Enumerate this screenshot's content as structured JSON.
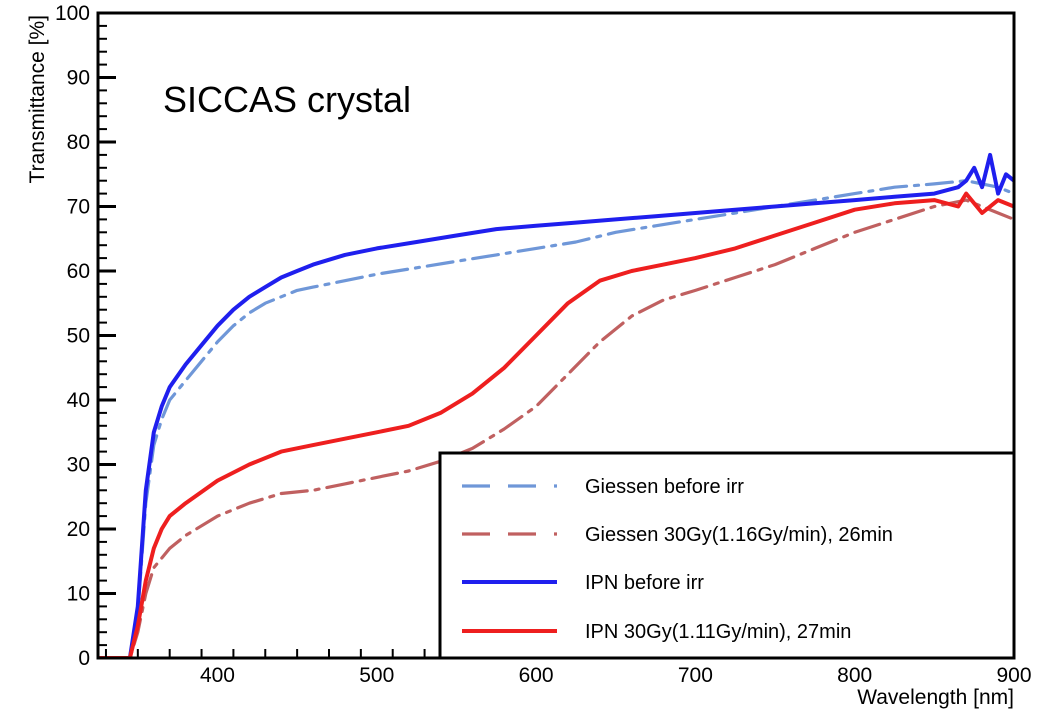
{
  "chart_data": {
    "type": "line",
    "title": "SICCAS crystal",
    "xlabel": "Wavelength [nm]",
    "ylabel": "Transmittance [%]",
    "xlim": [
      325,
      900
    ],
    "ylim": [
      0,
      100
    ],
    "xticks": [
      400,
      500,
      600,
      700,
      800,
      900
    ],
    "yticks": [
      0,
      10,
      20,
      30,
      40,
      50,
      60,
      70,
      80,
      90,
      100
    ],
    "grid": false,
    "legend_position": "bottom-right",
    "series": [
      {
        "name": "Giessen before irr",
        "color": "#6f97d8",
        "style": "dash-dot",
        "x": [
          325,
          345,
          350,
          355,
          360,
          365,
          370,
          380,
          390,
          400,
          410,
          420,
          430,
          440,
          450,
          460,
          480,
          500,
          525,
          550,
          575,
          600,
          625,
          650,
          675,
          700,
          725,
          750,
          775,
          800,
          825,
          850,
          870,
          890,
          900
        ],
        "y": [
          0,
          0,
          7,
          24,
          33,
          37,
          40,
          43,
          46,
          49,
          51.5,
          53.5,
          55,
          56,
          57,
          57.5,
          58.5,
          59.5,
          60.5,
          61.5,
          62.5,
          63.5,
          64.5,
          66,
          67,
          68,
          69,
          70,
          71,
          72,
          73,
          73.5,
          74,
          73,
          72
        ]
      },
      {
        "name": "Giessen 30Gy(1.16Gy/min), 26min",
        "color": "#c06060",
        "style": "dash-dot",
        "x": [
          325,
          345,
          350,
          355,
          360,
          370,
          380,
          400,
          420,
          440,
          460,
          480,
          500,
          520,
          540,
          560,
          580,
          600,
          620,
          640,
          660,
          680,
          700,
          725,
          750,
          775,
          800,
          825,
          850,
          870,
          890,
          900
        ],
        "y": [
          0,
          0,
          4,
          10,
          14,
          17,
          19,
          22,
          24,
          25.5,
          26,
          27,
          28,
          29,
          30.5,
          32.5,
          35.5,
          39,
          44,
          49,
          53,
          55.5,
          57,
          59,
          61,
          63.5,
          66,
          68,
          70,
          71,
          69,
          68
        ]
      },
      {
        "name": "IPN before irr",
        "color": "#1f1fee",
        "style": "solid",
        "x": [
          325,
          345,
          350,
          355,
          360,
          365,
          370,
          380,
          390,
          400,
          410,
          420,
          430,
          440,
          450,
          460,
          480,
          500,
          525,
          550,
          575,
          600,
          625,
          650,
          675,
          700,
          725,
          750,
          775,
          800,
          825,
          850,
          865,
          870,
          875,
          880,
          885,
          890,
          895,
          900
        ],
        "y": [
          0,
          0,
          8,
          26,
          35,
          39,
          42,
          45.5,
          48.5,
          51.5,
          54,
          56,
          57.5,
          59,
          60,
          61,
          62.5,
          63.5,
          64.5,
          65.5,
          66.5,
          67,
          67.5,
          68,
          68.5,
          69,
          69.5,
          70,
          70.5,
          71,
          71.5,
          72,
          73,
          74,
          76,
          73,
          78,
          72,
          75,
          74
        ]
      },
      {
        "name": "IPN 30Gy(1.11Gy/min), 27min",
        "color": "#ee1f1f",
        "style": "solid",
        "x": [
          325,
          345,
          350,
          355,
          360,
          365,
          370,
          380,
          400,
          420,
          440,
          460,
          480,
          500,
          520,
          540,
          560,
          580,
          600,
          620,
          640,
          660,
          680,
          700,
          725,
          750,
          775,
          800,
          825,
          850,
          865,
          870,
          880,
          890,
          900
        ],
        "y": [
          0,
          0,
          5,
          12,
          17,
          20,
          22,
          24,
          27.5,
          30,
          32,
          33,
          34,
          35,
          36,
          38,
          41,
          45,
          50,
          55,
          58.5,
          60,
          61,
          62,
          63.5,
          65.5,
          67.5,
          69.5,
          70.5,
          71,
          70,
          72,
          69,
          71,
          70
        ]
      }
    ]
  }
}
